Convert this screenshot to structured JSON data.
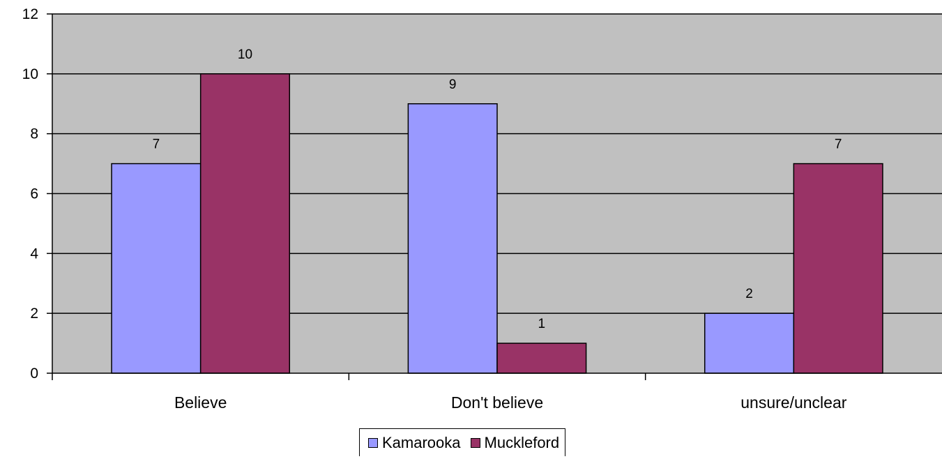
{
  "chart_data": {
    "type": "bar",
    "categories": [
      "Believe",
      "Don't believe",
      "unsure/unclear"
    ],
    "series": [
      {
        "name": "Kamarooka",
        "values": [
          7,
          9,
          2
        ],
        "color": "#9999FF"
      },
      {
        "name": "Muckleford",
        "values": [
          10,
          1,
          7
        ],
        "color": "#993366"
      }
    ],
    "ylim": [
      0,
      12
    ],
    "yticks": [
      0,
      2,
      4,
      6,
      8,
      10,
      12
    ],
    "grid": true,
    "plot_background": "#C0C0C0",
    "legend_position": "bottom"
  }
}
